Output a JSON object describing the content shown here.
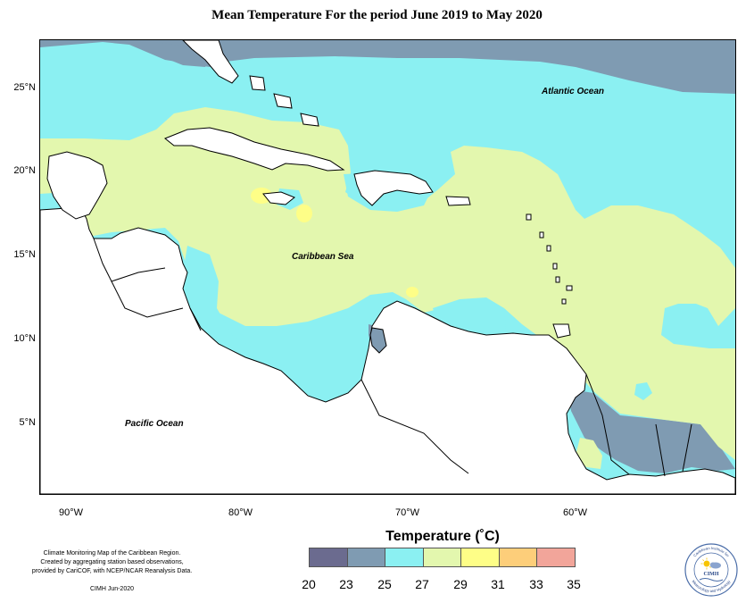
{
  "title": "Mean Temperature For the period June 2019 to May 2020",
  "labels": {
    "atlantic": "Atlantic Ocean",
    "caribbean": "Caribbean Sea",
    "pacific": "Pacific Ocean"
  },
  "latitude_ticks": [
    "25°N",
    "20°N",
    "15°N",
    "10°N",
    "5°N"
  ],
  "longitude_ticks": [
    "90°W",
    "80°W",
    "70°W",
    "60°W"
  ],
  "legend": {
    "title": "Temperature (˚C)",
    "ticks": [
      "20",
      "23",
      "25",
      "27",
      "29",
      "31",
      "33",
      "35"
    ],
    "colors": [
      "#6b6b8f",
      "#7f9bb2",
      "#8bf0f2",
      "#e3f7ae",
      "#fefe87",
      "#fdce7a",
      "#f2a59a"
    ]
  },
  "credits": {
    "line1": "Climate Monitoring Map of the Caribbean Region.",
    "line2": "Created by aggregating station based observations,",
    "line3": "provided by CariCOF, with NCEP/NCAR Reanalysis Data.",
    "stamp": "CIMH Jun-2020"
  },
  "logo": {
    "text": "CIMH",
    "ring_top": "Caribbean Institute for",
    "ring_bottom": "Meteorology and Hydrology"
  }
}
